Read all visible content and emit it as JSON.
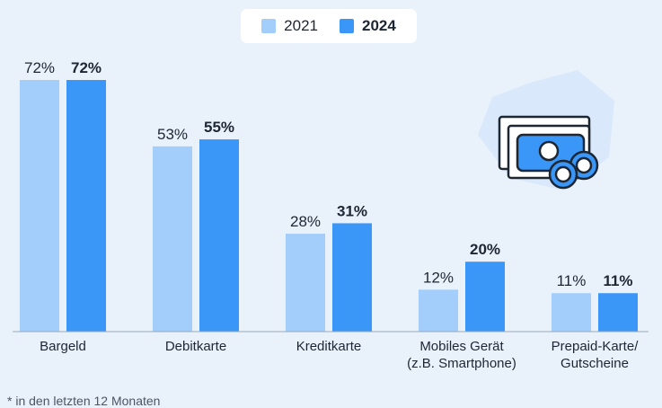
{
  "legend": [
    {
      "label": "2021",
      "color": "#a3cdfb"
    },
    {
      "label": "2024",
      "color": "#3a96f7"
    }
  ],
  "chart_data": {
    "type": "bar",
    "categories": [
      "Bargeld",
      "Debitkarte",
      "Kreditkarte",
      "Mobiles Gerät\n(z.B. Smartphone)",
      "Prepaid-Karte/\nGutscheine"
    ],
    "series": [
      {
        "name": "2021",
        "values": [
          72,
          53,
          28,
          12,
          11
        ],
        "labels": [
          "72%",
          "53%",
          "28%",
          "12%",
          "11%"
        ],
        "color": "#a3cdfb"
      },
      {
        "name": "2024",
        "values": [
          72,
          55,
          31,
          20,
          11
        ],
        "labels": [
          "72%",
          "55%",
          "31%",
          "20%",
          "11%"
        ],
        "color": "#3a96f7"
      }
    ],
    "ylim": [
      0,
      72
    ],
    "title": "",
    "xlabel": "",
    "ylabel": ""
  },
  "icon": "cash-and-coins-icon",
  "footnote": "* in den letzten 12 Monaten"
}
